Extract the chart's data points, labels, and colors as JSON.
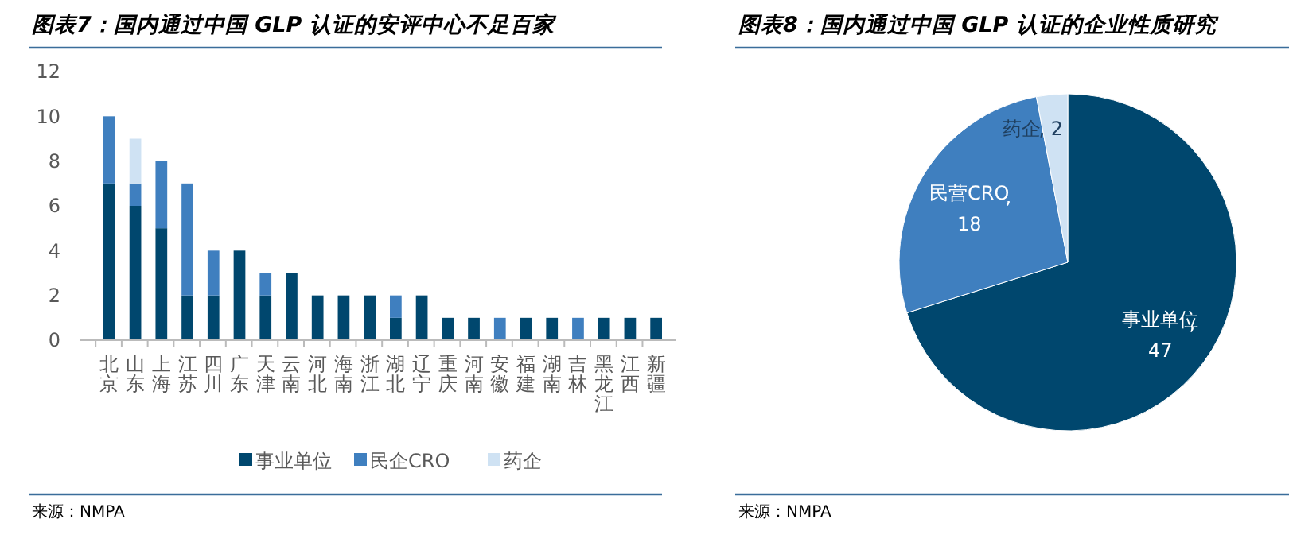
{
  "chart_data": [
    {
      "type": "bar",
      "title": "图表7：国内通过中国 GLP 认证的安评中心不足百家",
      "categories": [
        "北京",
        "山东",
        "上海",
        "江苏",
        "四川",
        "广东",
        "天津",
        "云南",
        "河北",
        "海南",
        "浙江",
        "湖北",
        "辽宁",
        "重庆",
        "河南",
        "安徽",
        "福建",
        "湖南",
        "吉林",
        "黑龙江",
        "江西",
        "新疆"
      ],
      "series": [
        {
          "name": "事业单位",
          "color": "#00476e",
          "values": [
            7,
            6,
            5,
            2,
            2,
            4,
            2,
            3,
            2,
            2,
            2,
            1,
            2,
            1,
            1,
            0,
            1,
            1,
            0,
            1,
            1,
            1
          ]
        },
        {
          "name": "民企CRO",
          "color": "#3f7fbf",
          "values": [
            3,
            1,
            3,
            5,
            2,
            0,
            1,
            0,
            0,
            0,
            0,
            1,
            0,
            0,
            0,
            1,
            0,
            0,
            1,
            0,
            0,
            0
          ]
        },
        {
          "name": "药企",
          "color": "#cfe2f3",
          "values": [
            0,
            2,
            0,
            0,
            0,
            0,
            0,
            0,
            0,
            0,
            0,
            0,
            0,
            0,
            0,
            0,
            0,
            0,
            0,
            0,
            0,
            0
          ]
        }
      ],
      "stacked": true,
      "ylim": [
        0,
        12
      ],
      "yticks": [
        0,
        2,
        4,
        6,
        8,
        10,
        12
      ],
      "grid": false,
      "legend": "bottom",
      "annotations": [
        "来源：NMPA"
      ]
    },
    {
      "type": "pie",
      "title": "图表8：国内通过中国 GLP 认证的企业性质研究",
      "categories": [
        "事业单位",
        "民营CRO",
        "药企"
      ],
      "values": [
        47,
        18,
        2
      ],
      "colors": [
        "#00476e",
        "#3f7fbf",
        "#cfe2f3"
      ],
      "value_labels": [
        ", 47",
        ", 18",
        ", 2"
      ],
      "legend": false,
      "annotations": [
        "来源：NMPA"
      ]
    }
  ]
}
